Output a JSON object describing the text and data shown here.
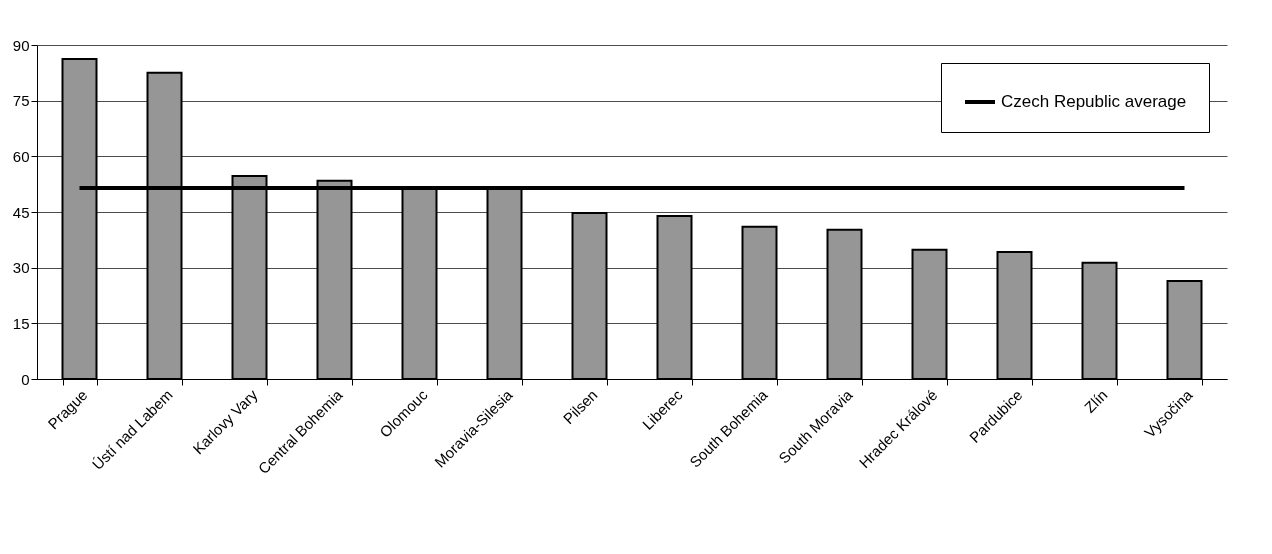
{
  "chart_data": {
    "type": "bar",
    "categories": [
      "Prague",
      "Ústí nad Labem",
      "Karlovy Vary",
      "Central Bohemia",
      "Olomouc",
      "Moravia-Silesia",
      "Pilsen",
      "Liberec",
      "South Bohemia",
      "South Moravia",
      "Hradec Králové",
      "Pardubice",
      "Zlín",
      "Vysočina"
    ],
    "series": [
      {
        "color": "#969696",
        "values": [
          86.2,
          82.5,
          54.7,
          53.4,
          51.5,
          51.5,
          44.7,
          43.9,
          41.0,
          40.2,
          34.8,
          34.2,
          31.3,
          26.4
        ]
      },
      {
        "type": "line",
        "name": "Czech Republic average",
        "color": "#000000",
        "values": [
          51.5,
          51.5,
          51.5,
          51.5,
          51.5,
          51.5,
          51.5,
          51.5,
          51.5,
          51.5,
          51.5,
          51.5,
          51.5,
          51.5
        ]
      }
    ],
    "ylim": [
      0,
      90
    ],
    "yticks": [
      0,
      15,
      30,
      45,
      60,
      75,
      90
    ],
    "grid": "y",
    "legend": "top right",
    "marker": "none"
  }
}
